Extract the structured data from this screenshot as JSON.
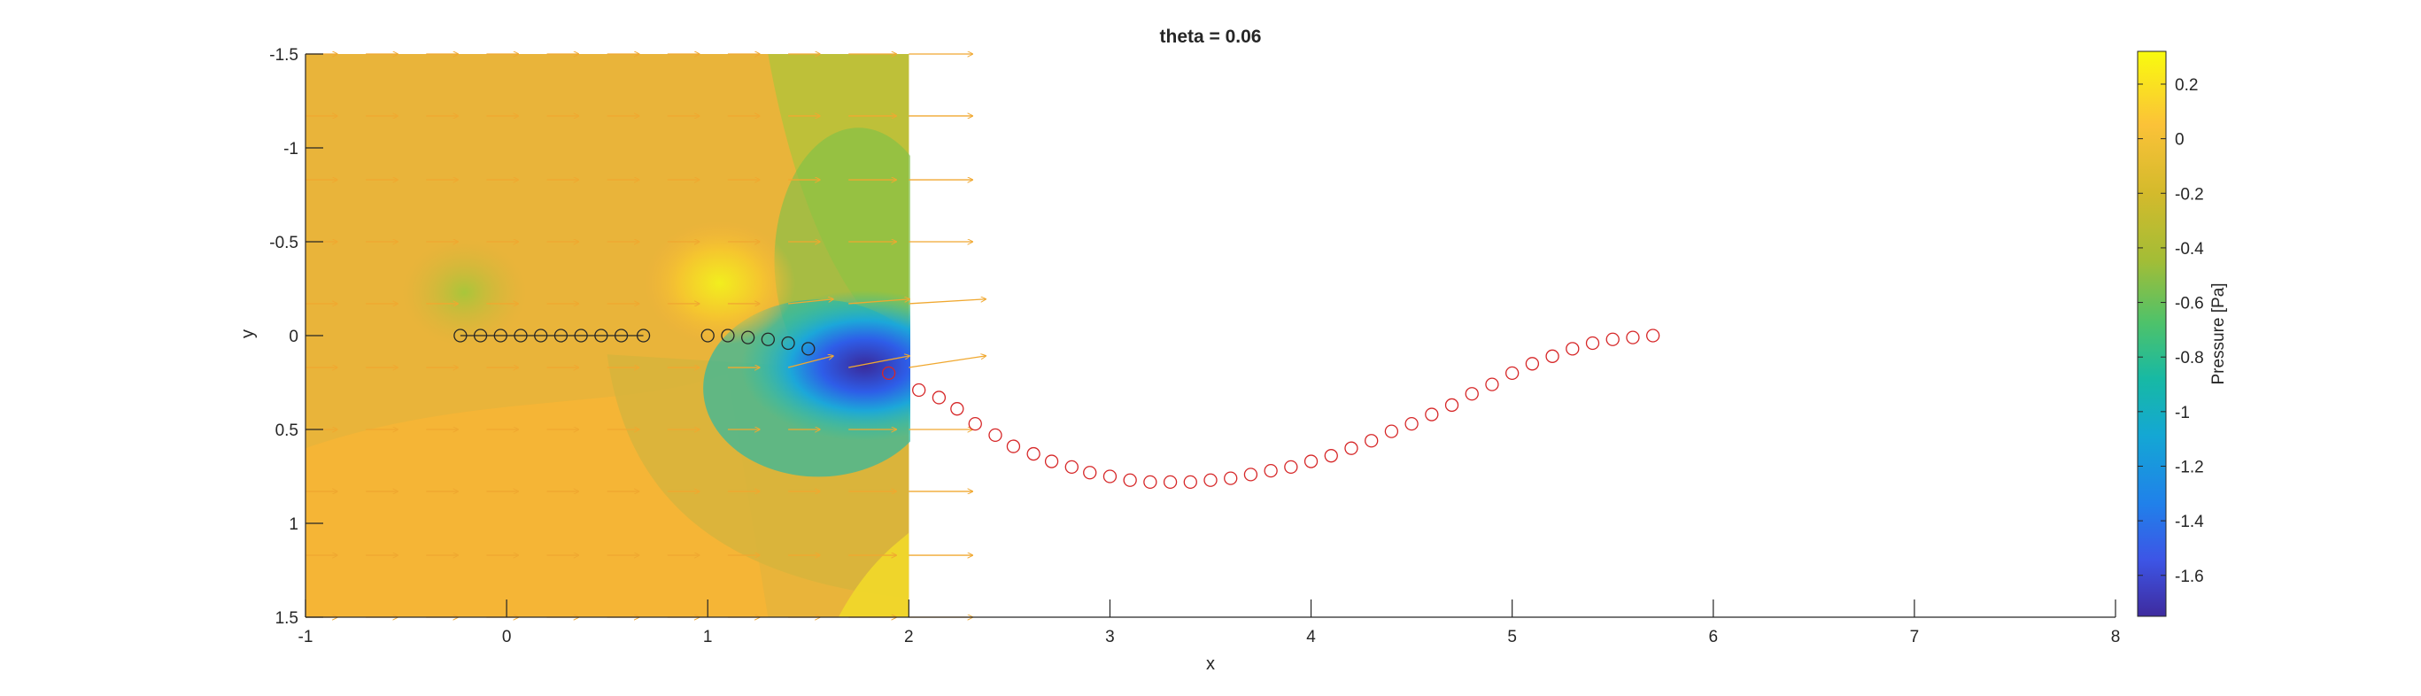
{
  "chart_data": {
    "type": "contour",
    "title": "theta = 0.06",
    "xlabel": "x",
    "ylabel": "y",
    "xlim": [
      -1,
      8
    ],
    "ylim": [
      -1.5,
      1.5
    ],
    "y_axis_reversed": true,
    "xticks": [
      -1,
      0,
      1,
      2,
      3,
      4,
      5,
      6,
      7,
      8
    ],
    "yticks": [
      -1.5,
      -1,
      -0.5,
      0,
      0.5,
      1,
      1.5
    ],
    "grid": false,
    "contour_region": {
      "x": [
        -1,
        2
      ],
      "y": [
        -1.5,
        1.5
      ]
    },
    "colorbar": {
      "label": "Pressure [Pa]",
      "colormap": "parula",
      "range": [
        -1.75,
        0.32
      ],
      "ticks": [
        0.2,
        0,
        -0.2,
        -0.4,
        -0.6,
        -0.8,
        -1,
        -1.2,
        -1.4,
        -1.6
      ]
    },
    "series": [
      {
        "marker": "o",
        "color": "#262626",
        "x": [
          -0.23,
          -0.13,
          -0.03,
          0.07,
          0.17,
          0.27,
          0.37,
          0.47,
          0.57,
          0.68,
          1.0,
          1.1,
          1.2,
          1.3,
          1.4,
          1.5
        ],
        "y": [
          0,
          0,
          0,
          0,
          0,
          0,
          0,
          0,
          0,
          0,
          0,
          0,
          0.01,
          0.02,
          0.04,
          0.07
        ]
      },
      {
        "marker": "o",
        "color": "#d62728",
        "x": [
          1.9,
          2.05,
          2.15,
          2.24,
          2.33,
          2.43,
          2.52,
          2.62,
          2.71,
          2.81,
          2.9,
          3.0,
          3.1,
          3.2,
          3.3,
          3.4,
          3.5,
          3.6,
          3.7,
          3.8,
          3.9,
          4.0,
          4.1,
          4.2,
          4.3,
          4.4,
          4.5,
          4.6,
          4.7,
          4.8,
          4.9,
          5.0,
          5.1,
          5.2,
          5.3,
          5.4,
          5.5,
          5.6,
          5.7
        ],
        "y": [
          0.2,
          0.29,
          0.33,
          0.39,
          0.47,
          0.53,
          0.59,
          0.63,
          0.67,
          0.7,
          0.73,
          0.75,
          0.77,
          0.78,
          0.78,
          0.78,
          0.77,
          0.76,
          0.74,
          0.72,
          0.7,
          0.67,
          0.64,
          0.6,
          0.56,
          0.51,
          0.47,
          0.42,
          0.37,
          0.31,
          0.26,
          0.2,
          0.15,
          0.11,
          0.07,
          0.04,
          0.02,
          0.01,
          0
        ]
      }
    ],
    "quiver": {
      "color": "#f0a830",
      "x": [
        -1,
        -0.7,
        -0.4,
        -0.1,
        0.2,
        0.5,
        0.8,
        1.1,
        1.4,
        1.7,
        2.0
      ],
      "y": [
        -1.5,
        -1.17,
        -0.83,
        -0.5,
        -0.17,
        0.17,
        0.5,
        0.83,
        1.17,
        1.5
      ]
    }
  }
}
